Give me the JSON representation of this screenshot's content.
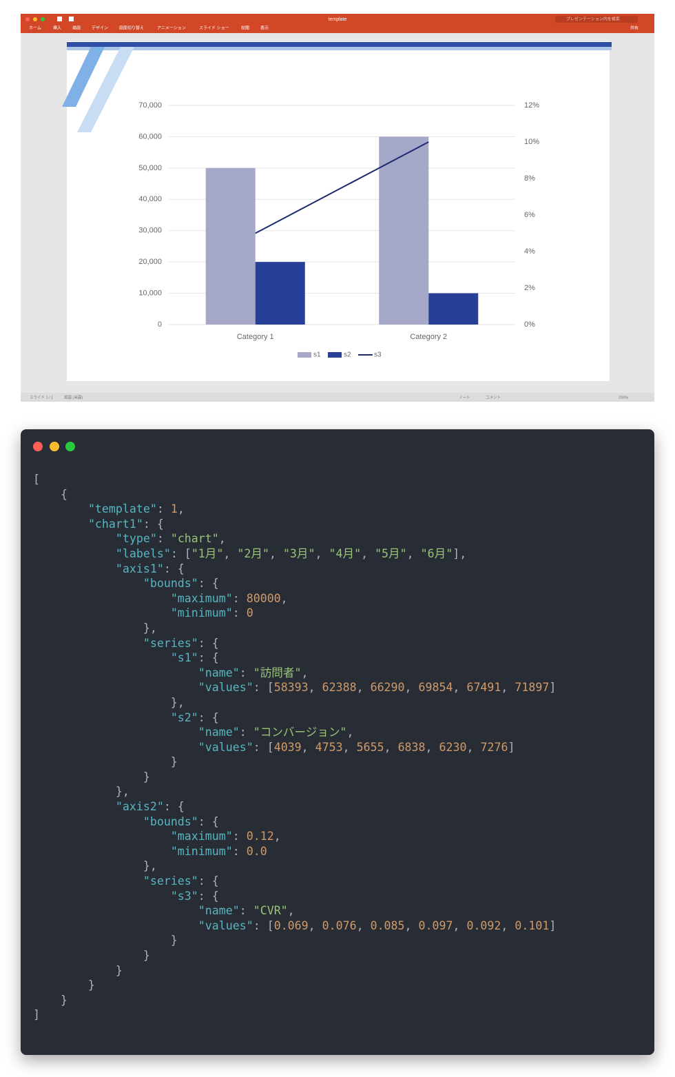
{
  "window": {
    "title": "template",
    "menu": [
      "ホーム",
      "挿入",
      "描画",
      "デザイン",
      "画面切り替え",
      "アニメーション",
      "スライド ショー",
      "校閲",
      "表示"
    ],
    "search": "プレゼンテーション内を検索",
    "share": "共有",
    "status_left": [
      "スライド 1 / 1",
      "英語 (米国)"
    ],
    "status_right": [
      "ノート",
      "コメント",
      "200%"
    ]
  },
  "chart_data": {
    "type": "bar",
    "categories": [
      "Category 1",
      "Category 2"
    ],
    "series": [
      {
        "name": "s1",
        "color": "#a5a8c8",
        "values": [
          50000,
          60000
        ]
      },
      {
        "name": "s2",
        "color": "#273f96",
        "values": [
          20000,
          10000
        ]
      },
      {
        "name": "s3",
        "color": "#1b2a6b",
        "values": [
          5,
          10
        ],
        "axis": "y2",
        "type": "line"
      }
    ],
    "ylim": [
      0,
      70000
    ],
    "yticks": [
      0,
      {
        "value": 10000,
        "label": "10,000"
      },
      {
        "value": 20000,
        "label": "20,000"
      },
      {
        "value": 30000,
        "label": "30,000"
      },
      {
        "value": 40000,
        "label": "40,000"
      },
      {
        "value": 50000,
        "label": "50,000"
      },
      {
        "value": 60000,
        "label": "60,000"
      },
      {
        "value": 70000,
        "label": "70,000"
      }
    ],
    "y2lim": [
      0,
      12
    ],
    "y2ticks": [
      {
        "value": 0,
        "label": "0%"
      },
      {
        "value": 2,
        "label": "2%"
      },
      {
        "value": 4,
        "label": "4%"
      },
      {
        "value": 6,
        "label": "6%"
      },
      {
        "value": 8,
        "label": "8%"
      },
      {
        "value": 10,
        "label": "10%"
      },
      {
        "value": 12,
        "label": "12%"
      }
    ],
    "grid": true,
    "legend": "bottom"
  },
  "code": {
    "lines": [
      "[",
      "    {",
      "        \"template\": 1,",
      "        \"chart1\": {",
      "            \"type\": \"chart\",",
      "            \"labels\": [\"1月\", \"2月\", \"3月\", \"4月\", \"5月\", \"6月\"],",
      "            \"axis1\": {",
      "                \"bounds\": {",
      "                    \"maximum\": 80000,",
      "                    \"minimum\": 0",
      "                },",
      "                \"series\": {",
      "                    \"s1\": {",
      "                        \"name\": \"訪問者\",",
      "                        \"values\": [58393, 62388, 66290, 69854, 67491, 71897]",
      "                    },",
      "                    \"s2\": {",
      "                        \"name\": \"コンバージョン\",",
      "                        \"values\": [4039, 4753, 5655, 6838, 6230, 7276]",
      "                    }",
      "                }",
      "            },",
      "            \"axis2\": {",
      "                \"bounds\": {",
      "                    \"maximum\": 0.12,",
      "                    \"minimum\": 0.0",
      "                },",
      "                \"series\": {",
      "                    \"s3\": {",
      "                        \"name\": \"CVR\",",
      "                        \"values\": [0.069, 0.076, 0.085, 0.097, 0.092, 0.101]",
      "                    }",
      "                }",
      "            }",
      "        }",
      "    }",
      "]"
    ]
  }
}
